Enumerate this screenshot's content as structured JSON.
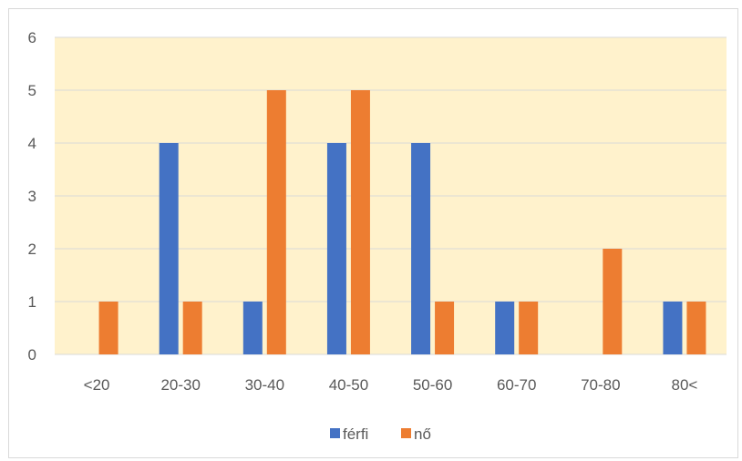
{
  "chart_data": {
    "type": "bar",
    "categories": [
      "<20",
      "20-30",
      "30-40",
      "40-50",
      "50-60",
      "60-70",
      "70-80",
      "80<"
    ],
    "series": [
      {
        "name": "férfi",
        "values": [
          0,
          4,
          1,
          4,
          4,
          1,
          0,
          1
        ],
        "color": "#4472c4"
      },
      {
        "name": "nő",
        "values": [
          1,
          1,
          5,
          5,
          1,
          1,
          2,
          1
        ],
        "color": "#ed7d31"
      }
    ],
    "title": "",
    "xlabel": "",
    "ylabel": "",
    "ylim": [
      0,
      6
    ],
    "yticks": [
      "0",
      "1",
      "2",
      "3",
      "4",
      "5",
      "6"
    ],
    "grid": true,
    "legend_position": "bottom",
    "plot_background": "#fff2cc",
    "gridline_color": "#d9d9d9"
  }
}
